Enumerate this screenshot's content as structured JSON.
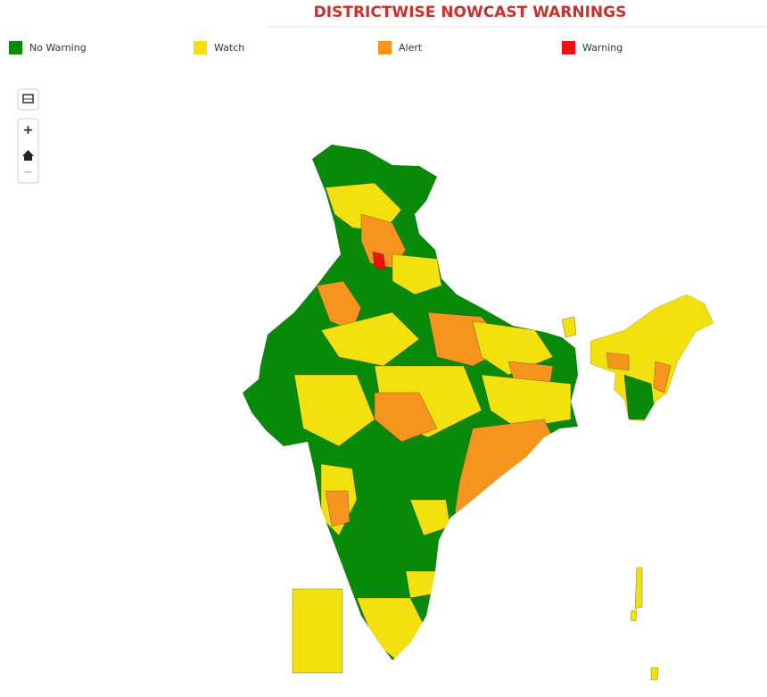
{
  "header": {
    "title": "DISTRICTWISE NOWCAST WARNINGS"
  },
  "legend": [
    {
      "label": "No Warning",
      "color": "#078a07"
    },
    {
      "label": "Watch",
      "color": "#f3e10f"
    },
    {
      "label": "Alert",
      "color": "#f7941d"
    },
    {
      "label": "Warning",
      "color": "#ee1111"
    }
  ],
  "controls": {
    "zoom_in": "+",
    "zoom_out": "−"
  }
}
